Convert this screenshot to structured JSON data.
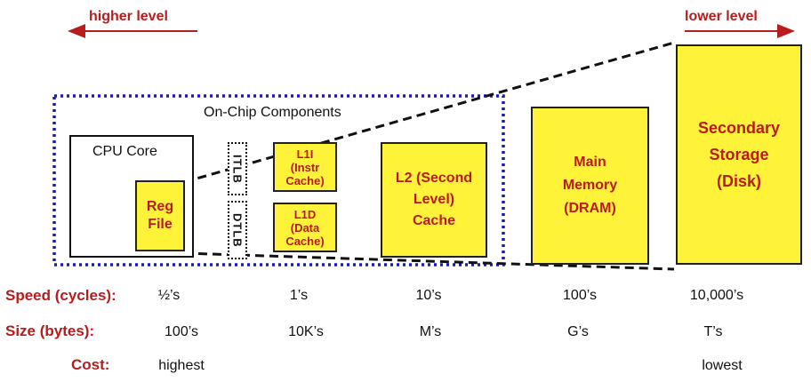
{
  "levels": {
    "higher": "higher level",
    "lower": "lower level"
  },
  "onchip": {
    "label": "On-Chip Components"
  },
  "cpu": {
    "label": "CPU Core",
    "regfile": "Reg\nFile"
  },
  "tlb": {
    "itlb": "ITLB",
    "dtlb": "DTLB"
  },
  "caches": {
    "l1i": "L1I\n(Instr\nCache)",
    "l1d": "L1D\n(Data\nCache)",
    "l2": "L2 (Second\nLevel)\nCache"
  },
  "memory": {
    "main": "Main\nMemory\n(DRAM)",
    "secondary": "Secondary\nStorage\n(Disk)"
  },
  "rows": {
    "speed": {
      "label": "Speed (cycles):",
      "values": [
        "½’s",
        "1’s",
        "10’s",
        "100’s",
        "10,000’s"
      ]
    },
    "size": {
      "label": "Size (bytes):",
      "values": [
        "100’s",
        "10K’s",
        "M’s",
        "G’s",
        "T’s"
      ]
    },
    "cost": {
      "label": "Cost:",
      "values": [
        "highest",
        "lowest"
      ]
    }
  },
  "colors": {
    "accent": "#b81c1c",
    "box_fill": "#fff33a",
    "onchip_border": "#1a1ab8"
  }
}
